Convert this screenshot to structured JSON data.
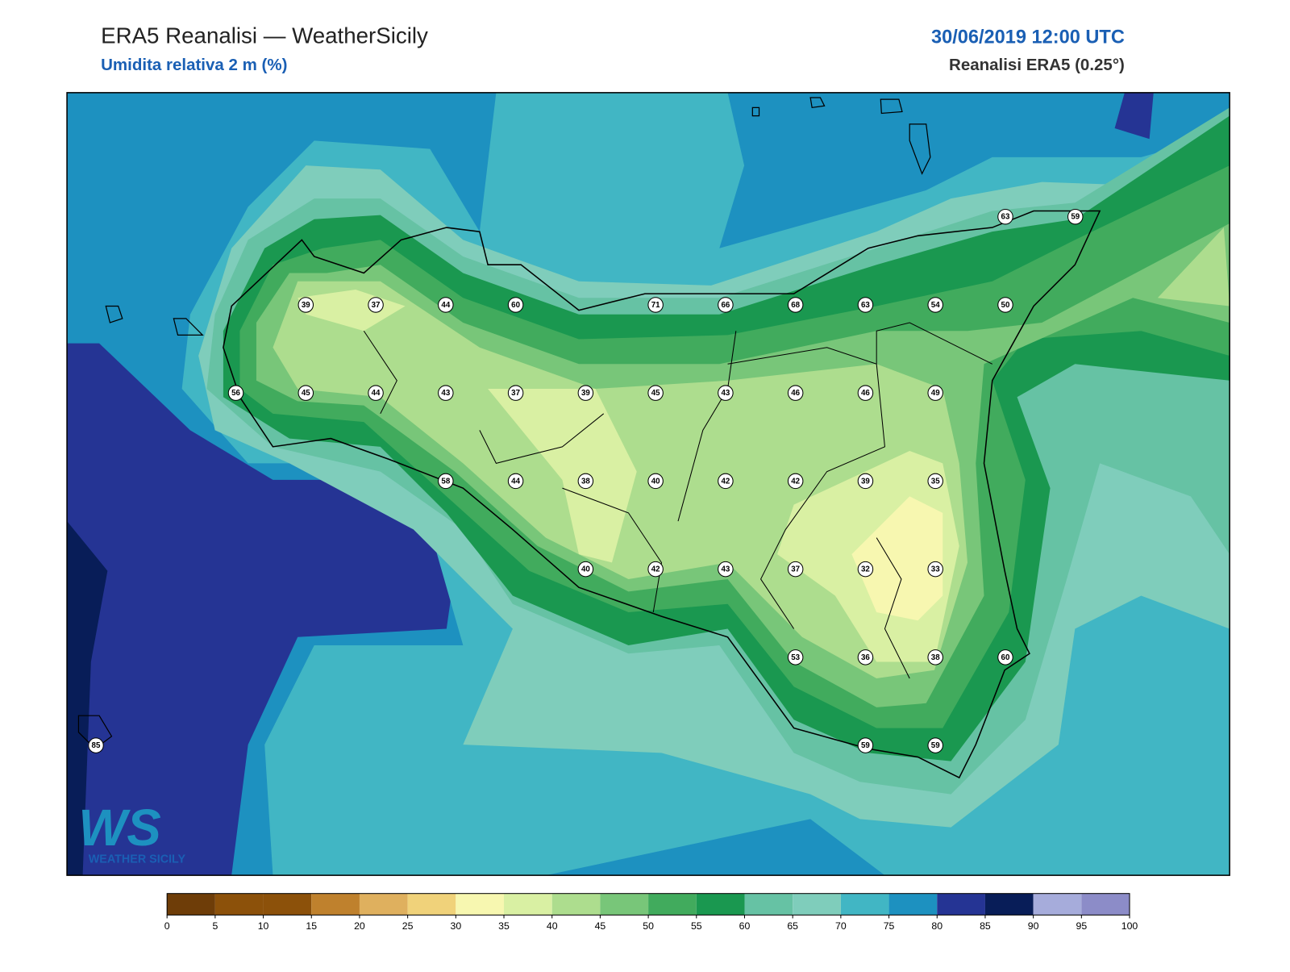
{
  "header": {
    "title": "ERA5 Reanalisi — WeatherSicily",
    "subtitle": "Umidita relativa 2 m (%)",
    "datetime": "30/06/2019 12:00 UTC",
    "source": "Reanalisi ERA5 (0.25°)"
  },
  "logo": {
    "mark": "WS",
    "name": "WEATHER SICILY"
  },
  "stations": {
    "rows": [
      [
        null,
        null,
        null,
        null,
        null,
        null,
        null,
        null,
        null,
        null,
        null,
        null,
        null,
        63,
        59
      ],
      [
        null,
        null,
        null,
        39,
        37,
        44,
        60,
        null,
        71,
        66,
        68,
        63,
        54,
        50,
        null
      ],
      [
        null,
        null,
        56,
        45,
        44,
        43,
        37,
        39,
        45,
        43,
        46,
        46,
        49,
        null,
        null
      ],
      [
        null,
        null,
        null,
        null,
        null,
        58,
        44,
        38,
        40,
        42,
        42,
        39,
        35,
        null,
        null
      ],
      [
        null,
        null,
        null,
        null,
        null,
        null,
        null,
        40,
        42,
        43,
        37,
        32,
        33,
        null,
        null
      ],
      [
        null,
        null,
        null,
        null,
        null,
        null,
        null,
        null,
        null,
        null,
        53,
        36,
        38,
        60,
        null
      ],
      [
        85,
        null,
        null,
        null,
        null,
        null,
        null,
        null,
        null,
        null,
        null,
        59,
        59,
        null,
        null
      ]
    ]
  },
  "colorbar": {
    "ticks": [
      0,
      5,
      10,
      15,
      20,
      25,
      30,
      35,
      40,
      45,
      50,
      55,
      60,
      65,
      70,
      75,
      80,
      85,
      90,
      95,
      100
    ],
    "colors": [
      "#6e3d08",
      "#8c510a",
      "#8c510a",
      "#bf812d",
      "#dfb05e",
      "#f0d27a",
      "#f7f7b0",
      "#d9f0a3",
      "#addd8e",
      "#78c679",
      "#41ab5d",
      "#1a9850",
      "#66c2a4",
      "#7fcdbb",
      "#41b6c4",
      "#1d91c0",
      "#253494",
      "#081d58",
      "#a6acdb",
      "#8c8cc8"
    ]
  }
}
